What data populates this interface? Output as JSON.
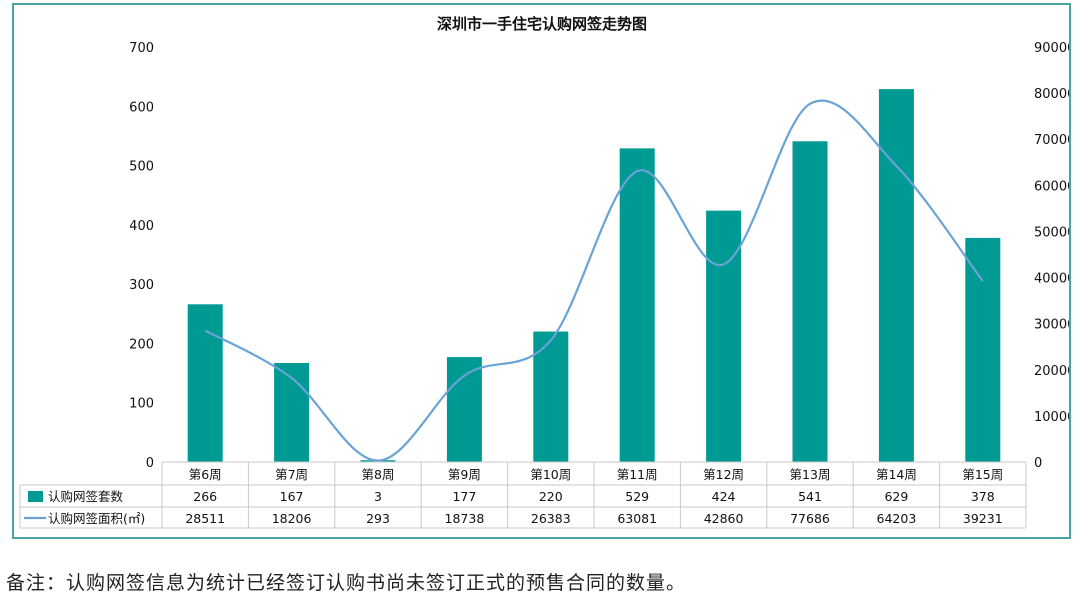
{
  "footnote": "备注：认购网签信息为统计已经签订认购书尚未签订正式的预售合同的数量。",
  "colors": {
    "bar": "#009a94",
    "line": "#6aa3d6",
    "frame": "#4aa5a0",
    "grid": "#c8c8c8"
  },
  "chart_data": {
    "type": "bar",
    "title": "深圳市一手住宅认购网签走势图",
    "categories": [
      "第6周",
      "第7周",
      "第8周",
      "第9周",
      "第10周",
      "第11周",
      "第12周",
      "第13周",
      "第14周",
      "第15周"
    ],
    "series": [
      {
        "name": "认购网签套数",
        "type": "bar",
        "axis": "left",
        "values": [
          266,
          167,
          3,
          177,
          220,
          529,
          424,
          541,
          629,
          378
        ]
      },
      {
        "name": "认购网签面积(㎡)",
        "type": "line",
        "axis": "right",
        "values": [
          28511,
          18206,
          293,
          18738,
          26383,
          63081,
          42860,
          77686,
          64203,
          39231
        ]
      }
    ],
    "ylim_left": [
      0,
      700
    ],
    "yticks_left": [
      "0",
      "100",
      "200",
      "300",
      "400",
      "500",
      "600",
      "700"
    ],
    "ylim_right": [
      0,
      90000
    ],
    "yticks_right": [
      "0",
      "10000",
      "20000",
      "30000",
      "40000",
      "50000",
      "60000",
      "70000",
      "80000",
      "90000"
    ],
    "data_table": true,
    "grid": false
  }
}
